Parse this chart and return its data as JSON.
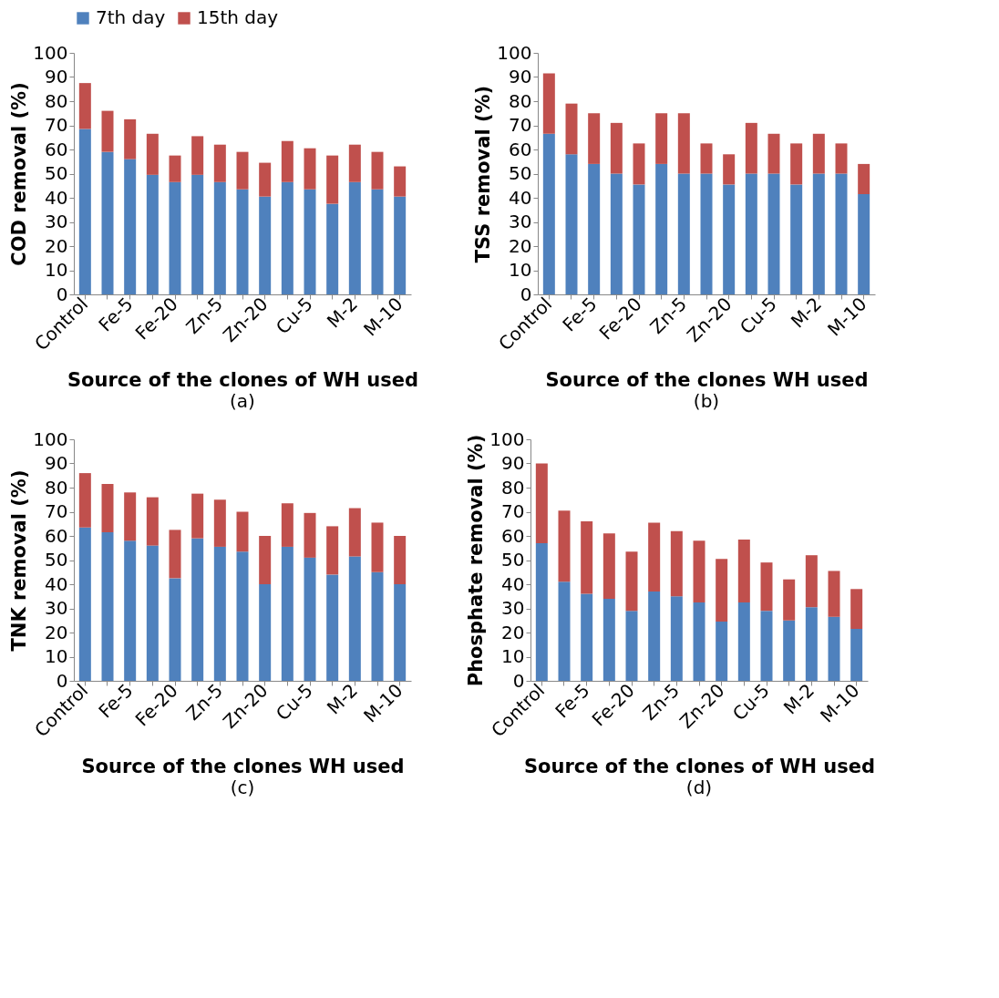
{
  "chart_data": [
    {
      "type": "bar",
      "stacked": true,
      "legend": "top",
      "grid": false,
      "xlabel": "Source of the clones of WH used",
      "ylabel": "COD removal (%)",
      "annotations": [
        "(a)"
      ],
      "categories": [
        "Control",
        null,
        "Fe-5",
        null,
        "Fe-20",
        null,
        "Zn-5",
        null,
        "Zn-20",
        null,
        "Cu-5",
        null,
        "M-2",
        null,
        "M-10"
      ],
      "ylim": [
        0,
        100
      ],
      "yticks": [
        0,
        10,
        20,
        30,
        40,
        50,
        60,
        70,
        80,
        90,
        100
      ],
      "series": [
        {
          "name": "7th day",
          "color": "#4f81bd",
          "values": [
            68.5,
            59,
            56,
            49.5,
            46.5,
            49.5,
            46.5,
            43.5,
            40.5,
            46.5,
            43.5,
            37.5,
            46.5,
            43.5,
            40.5
          ]
        },
        {
          "name": "15th day",
          "color": "#c0504d",
          "values": [
            19,
            17,
            16.5,
            17,
            11,
            16,
            15.5,
            15.5,
            14,
            17,
            17,
            20,
            15.5,
            15.5,
            12.5
          ]
        }
      ]
    },
    {
      "type": "bar",
      "stacked": true,
      "legend": "top",
      "grid": false,
      "xlabel": "Source of the clones WH used",
      "ylabel": "TSS removal (%)",
      "annotations": [
        "(b)"
      ],
      "categories": [
        "Control",
        null,
        "Fe-5",
        null,
        "Fe-20",
        null,
        "Zn-5",
        null,
        "Zn-20",
        null,
        "Cu-5",
        null,
        "M-2",
        null,
        "M-10"
      ],
      "ylim": [
        0,
        100
      ],
      "yticks": [
        0,
        10,
        20,
        30,
        40,
        50,
        60,
        70,
        80,
        90,
        100
      ],
      "series": [
        {
          "name": "7th day",
          "color": "#4f81bd",
          "values": [
            66.5,
            58,
            54,
            50,
            45.5,
            54,
            50,
            50,
            45.5,
            50,
            50,
            45.5,
            50,
            50,
            41.5
          ]
        },
        {
          "name": "15th day",
          "color": "#c0504d",
          "values": [
            25,
            21,
            21,
            21,
            17,
            21,
            25,
            12.5,
            12.5,
            21,
            16.5,
            17,
            16.5,
            12.5,
            12.5
          ]
        }
      ]
    },
    {
      "type": "bar",
      "stacked": true,
      "legend": "top",
      "grid": false,
      "xlabel": "Source of the clones WH used",
      "ylabel": "TNK removal (%)",
      "annotations": [
        "(c)"
      ],
      "categories": [
        "Control",
        null,
        "Fe-5",
        null,
        "Fe-20",
        null,
        "Zn-5",
        null,
        "Zn-20",
        null,
        "Cu-5",
        null,
        "M-2",
        null,
        "M-10"
      ],
      "ylim": [
        0,
        100
      ],
      "yticks": [
        0,
        10,
        20,
        30,
        40,
        50,
        60,
        70,
        80,
        90,
        100
      ],
      "series": [
        {
          "name": "7th day",
          "color": "#4f81bd",
          "values": [
            63.5,
            61.5,
            58,
            56,
            42.5,
            59,
            55.5,
            53.5,
            40,
            55.5,
            51,
            44,
            51.5,
            45,
            40
          ]
        },
        {
          "name": "15th day",
          "color": "#c0504d",
          "values": [
            22.5,
            20,
            20,
            20,
            20,
            18.5,
            19.5,
            16.5,
            20,
            18,
            18.5,
            20,
            20,
            20.5,
            20
          ]
        }
      ]
    },
    {
      "type": "bar",
      "stacked": true,
      "legend": "top",
      "grid": false,
      "xlabel": "Source of the clones of WH used",
      "ylabel": "Phosphate removal (%)",
      "annotations": [
        "(d)"
      ],
      "categories": [
        "Control",
        null,
        "Fe-5",
        null,
        "Fe-20",
        null,
        "Zn-5",
        null,
        "Zn-20",
        null,
        "Cu-5",
        null,
        "M-2",
        null,
        "M-10"
      ],
      "ylim": [
        0,
        100
      ],
      "yticks": [
        0,
        10,
        20,
        30,
        40,
        50,
        60,
        70,
        80,
        90,
        100
      ],
      "series": [
        {
          "name": "7th day",
          "color": "#4f81bd",
          "values": [
            57,
            41,
            36,
            34,
            29,
            37,
            35,
            32.5,
            24.5,
            32.5,
            29,
            25,
            30.5,
            26.5,
            21.5
          ]
        },
        {
          "name": "15th day",
          "color": "#c0504d",
          "values": [
            33,
            29.5,
            30,
            27,
            24.5,
            28.5,
            27,
            25.5,
            26,
            26,
            20,
            17,
            21.5,
            19,
            16.5
          ]
        }
      ]
    }
  ]
}
